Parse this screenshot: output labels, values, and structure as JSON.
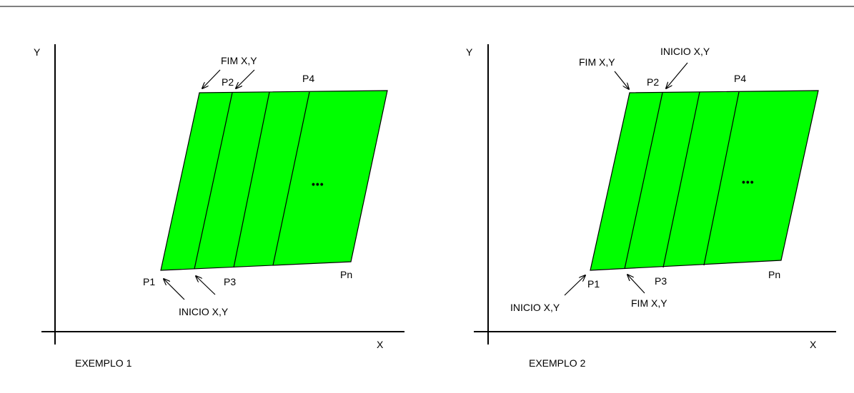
{
  "colors": {
    "fill": "#00ff00",
    "stroke": "#000000",
    "background": "#ffffff"
  },
  "examples": [
    {
      "title": "EXEMPLO 1",
      "axis_x": "X",
      "axis_y": "Y",
      "points": {
        "p1": "P1",
        "p2": "P2",
        "p3": "P3",
        "p4": "P4",
        "pn": "Pn"
      },
      "start_label": "INICIO X,Y",
      "end_label": "FIM X,Y",
      "ellipsis": "•••"
    },
    {
      "title": "EXEMPLO 2",
      "axis_x": "X",
      "axis_y": "Y",
      "points": {
        "p1": "P1",
        "p2": "P2",
        "p3": "P3",
        "p4": "P4",
        "pn": "Pn"
      },
      "start_label": "INICIO X,Y",
      "end_label": "FIM X,Y",
      "ellipsis": "•••"
    }
  ]
}
